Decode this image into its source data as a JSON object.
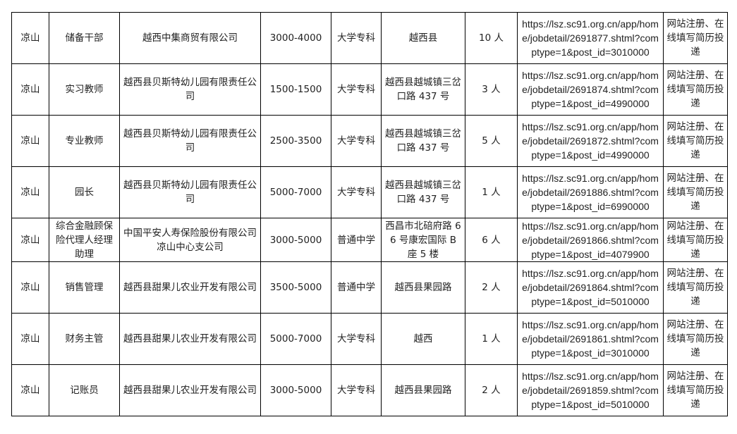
{
  "rows": [
    {
      "region": "凉山",
      "position": "储备干部",
      "company": "越西中集商贸有限公司",
      "salary": "3000-4000",
      "education": "大学专科",
      "location": "越西县",
      "count": "10 人",
      "url": "https://lsz.sc91.org.cn/app/home/jobdetail/2691877.shtml?comptype=1&post_id=3010000",
      "method": "网站注册、在线填写简历投递"
    },
    {
      "region": "凉山",
      "position": "实习教师",
      "company": "越西县贝斯特幼儿园有限责任公司",
      "salary": "1500-1500",
      "education": "大学专科",
      "location": "越西县越城镇三岔口路 437 号",
      "count": "3 人",
      "url": "https://lsz.sc91.org.cn/app/home/jobdetail/2691874.shtml?comptype=1&post_id=4990000",
      "method": "网站注册、在线填写简历投递"
    },
    {
      "region": "凉山",
      "position": "专业教师",
      "company": "越西县贝斯特幼儿园有限责任公司",
      "salary": "2500-3500",
      "education": "大学专科",
      "location": "越西县越城镇三岔口路 437 号",
      "count": "5 人",
      "url": "https://lsz.sc91.org.cn/app/home/jobdetail/2691872.shtml?comptype=1&post_id=4990000",
      "method": "网站注册、在线填写简历投递"
    },
    {
      "region": "凉山",
      "position": "园长",
      "company": "越西县贝斯特幼儿园有限责任公司",
      "salary": "5000-7000",
      "education": "大学专科",
      "location": "越西县越城镇三岔口路 437 号",
      "count": "1 人",
      "url": "https://lsz.sc91.org.cn/app/home/jobdetail/2691886.shtml?comptype=1&post_id=6990000",
      "method": "网站注册、在线填写简历投递"
    },
    {
      "region": "凉山",
      "position": "综合金融顾保险代理人经理助理",
      "company": "中国平安人寿保险股份有限公司凉山中心支公司",
      "salary": "3000-5000",
      "education": "普通中学",
      "location": "西昌市北碚府路 66 号康宏国际 B 座 5 楼",
      "count": "6 人",
      "url": "https://lsz.sc91.org.cn/app/home/jobdetail/2691866.shtml?comptype=1&post_id=4079900",
      "method": "网站注册、在线填写简历投递"
    },
    {
      "region": "凉山",
      "position": "销售管理",
      "company": "越西县甜果儿农业开发有限公司",
      "salary": "3500-5000",
      "education": "普通中学",
      "location": "越西县果园路",
      "count": "2 人",
      "url": "https://lsz.sc91.org.cn/app/home/jobdetail/2691864.shtml?comptype=1&post_id=5010000",
      "method": "网站注册、在线填写简历投递"
    },
    {
      "region": "凉山",
      "position": "财务主管",
      "company": "越西县甜果儿农业开发有限公司",
      "salary": "5000-7000",
      "education": "大学专科",
      "location": "越西",
      "count": "1 人",
      "url": "https://lsz.sc91.org.cn/app/home/jobdetail/2691861.shtml?comptype=1&post_id=3010000",
      "method": "网站注册、在线填写简历投递"
    },
    {
      "region": "凉山",
      "position": "记账员",
      "company": "越西县甜果儿农业开发有限公司",
      "salary": "3000-5000",
      "education": "大学专科",
      "location": "越西县果园路",
      "count": "2 人",
      "url": "https://lsz.sc91.org.cn/app/home/jobdetail/2691859.shtml?comptype=1&post_id=5010000",
      "method": "网站注册、在线填写简历投递"
    }
  ]
}
